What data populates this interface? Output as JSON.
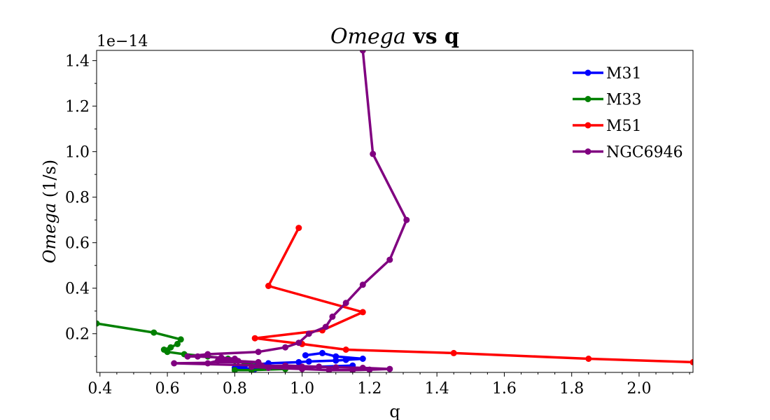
{
  "chart_data": {
    "type": "line",
    "title_italic": "Omega",
    "title_bold": " vs q",
    "xlabel": "q",
    "ylabel_italic": "Omega",
    "ylabel_unit": " (1/s)",
    "y_offset_label": "1e−14",
    "xlim": [
      0.39,
      2.16
    ],
    "ylim": [
      0.03,
      1.445
    ],
    "xticks": [
      0.4,
      0.6,
      0.8,
      1.0,
      1.2,
      1.4,
      1.6,
      1.8,
      2.0
    ],
    "xtick_labels": [
      "0.4",
      "0.6",
      "0.8",
      "1.0",
      "1.2",
      "1.4",
      "1.6",
      "1.8",
      "2.0"
    ],
    "yticks": [
      0.2,
      0.4,
      0.6,
      0.8,
      1.0,
      1.2,
      1.4
    ],
    "ytick_labels": [
      "0.2",
      "0.4",
      "0.6",
      "0.8",
      "1.0",
      "1.2",
      "1.4"
    ],
    "legend_position": "top-right",
    "series": [
      {
        "name": "M31",
        "color": "#0000ff",
        "x": [
          1.01,
          1.06,
          1.1,
          1.18,
          1.13,
          1.1,
          1.02,
          0.99,
          0.9,
          0.83,
          0.8,
          0.86,
          0.95,
          1.05,
          1.15
        ],
        "y": [
          0.105,
          0.115,
          0.1,
          0.09,
          0.085,
          0.082,
          0.078,
          0.075,
          0.07,
          0.06,
          0.05,
          0.045,
          0.05,
          0.055,
          0.06
        ]
      },
      {
        "name": "M33",
        "color": "#008000",
        "x": [
          0.39,
          0.56,
          0.64,
          0.63,
          0.61,
          0.59,
          0.6,
          0.65,
          0.72,
          0.78,
          0.8,
          0.83,
          0.87,
          0.9,
          0.95,
          0.85,
          0.8
        ],
        "y": [
          0.245,
          0.205,
          0.175,
          0.155,
          0.14,
          0.13,
          0.12,
          0.11,
          0.1,
          0.09,
          0.08,
          0.07,
          0.06,
          0.05,
          0.045,
          0.04,
          0.04
        ]
      },
      {
        "name": "M51",
        "color": "#ff0000",
        "x": [
          0.99,
          0.9,
          1.18,
          1.06,
          0.86,
          1.0,
          1.13,
          1.45,
          1.85,
          2.16
        ],
        "y": [
          0.665,
          0.41,
          0.295,
          0.215,
          0.18,
          0.155,
          0.13,
          0.115,
          0.09,
          0.075
        ]
      },
      {
        "name": "NGC6946",
        "color": "#800080",
        "x": [
          1.18,
          1.21,
          1.31,
          1.26,
          1.18,
          1.13,
          1.09,
          1.07,
          1.02,
          0.99,
          0.95,
          0.87,
          0.72,
          0.66,
          0.69,
          0.76,
          0.8,
          0.75,
          0.72,
          0.76,
          0.81,
          0.87,
          0.62,
          0.88,
          1.0,
          1.1,
          1.18,
          1.26,
          1.2,
          1.15,
          1.08,
          1.0,
          0.9,
          0.85,
          0.95,
          1.05,
          1.1
        ],
        "y": [
          1.445,
          0.99,
          0.7,
          0.525,
          0.415,
          0.335,
          0.275,
          0.23,
          0.2,
          0.16,
          0.14,
          0.12,
          0.11,
          0.1,
          0.1,
          0.095,
          0.09,
          0.08,
          0.07,
          0.085,
          0.08,
          0.075,
          0.07,
          0.06,
          0.055,
          0.052,
          0.05,
          0.045,
          0.042,
          0.04,
          0.04,
          0.045,
          0.05,
          0.055,
          0.06,
          0.055,
          0.05
        ]
      }
    ]
  }
}
